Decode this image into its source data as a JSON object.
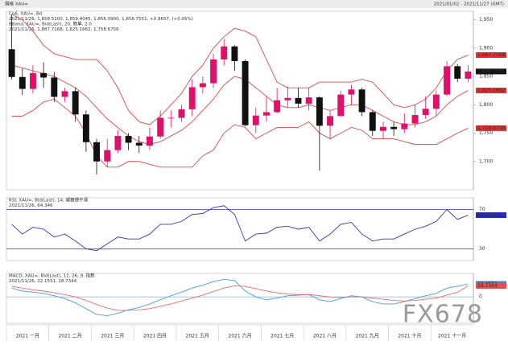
{
  "window_title": "價格 XAU=",
  "window_range": "2021/01/02 - 2021/11/27 (GMT)",
  "watermark": "FX678",
  "months": [
    "2021 一月",
    "2021 二月",
    "2021 三月",
    "2021 四月",
    "2021 五月",
    "2021 六月",
    "2021 七月",
    "2021 八月",
    "2021 九月",
    "2021 十月",
    "2021 十一月"
  ],
  "chart_data": [
    {
      "type": "candlestick",
      "header": [
        "Cn6, XAU=, Bd",
        "2021/11/26, 1,858.5100, 1,859.4045, 1,856.0900, 1,858.7551, +0.9657, (+0.05%)",
        "BBand, XAU=, Bid(Last), 20, 簡單, 2.0",
        "2021/11/26, 1,887.7168, 1,825.1662, 1,758.6756"
      ],
      "header_colors": [
        "#333333",
        "#2a2aa0",
        "#d03030",
        "#d03030"
      ],
      "open": [
        1898,
        1849,
        1828,
        1856,
        1848,
        1814,
        1824,
        1783,
        1734,
        1700,
        1720,
        1745,
        1733,
        1728,
        1744,
        1777,
        1777,
        1792,
        1831,
        1838,
        1880,
        1903,
        1877,
        1764,
        1781,
        1787,
        1808,
        1812,
        1802,
        1813,
        1763,
        1780,
        1818,
        1827,
        1787,
        1754,
        1761,
        1757,
        1767,
        1782,
        1793,
        1818,
        1868,
        1846
      ],
      "high": [
        1959,
        1864,
        1870,
        1875,
        1858,
        1830,
        1830,
        1790,
        1740,
        1740,
        1755,
        1750,
        1745,
        1760,
        1790,
        1790,
        1800,
        1845,
        1850,
        1890,
        1916,
        1905,
        1880,
        1795,
        1815,
        1830,
        1832,
        1830,
        1830,
        1815,
        1790,
        1825,
        1835,
        1830,
        1790,
        1770,
        1770,
        1785,
        1800,
        1815,
        1825,
        1877,
        1872,
        1870
      ],
      "low": [
        1845,
        1817,
        1820,
        1830,
        1805,
        1805,
        1770,
        1717,
        1677,
        1690,
        1715,
        1720,
        1715,
        1720,
        1740,
        1760,
        1770,
        1780,
        1820,
        1830,
        1870,
        1860,
        1762,
        1750,
        1770,
        1785,
        1795,
        1795,
        1790,
        1684,
        1740,
        1780,
        1800,
        1780,
        1745,
        1740,
        1745,
        1750,
        1760,
        1775,
        1780,
        1815,
        1840,
        1840
      ],
      "close": [
        1849,
        1828,
        1856,
        1848,
        1814,
        1824,
        1783,
        1734,
        1700,
        1720,
        1745,
        1733,
        1728,
        1744,
        1777,
        1777,
        1792,
        1831,
        1838,
        1880,
        1903,
        1877,
        1764,
        1781,
        1787,
        1808,
        1812,
        1802,
        1813,
        1763,
        1780,
        1818,
        1827,
        1787,
        1754,
        1761,
        1757,
        1767,
        1782,
        1793,
        1818,
        1868,
        1846,
        1858.7551
      ],
      "up_color": "#e0106a",
      "down_color": "#111111",
      "series": [
        {
          "color": "#e04848",
          "values": [
            1960,
            1950,
            1930,
            1905,
            1890,
            1885,
            1880,
            1880,
            1880,
            1860,
            1830,
            1790,
            1770,
            1765,
            1780,
            1800,
            1820,
            1850,
            1870,
            1900,
            1920,
            1935,
            1930,
            1920,
            1880,
            1840,
            1830,
            1830,
            1830,
            1840,
            1840,
            1840,
            1840,
            1845,
            1840,
            1820,
            1800,
            1795,
            1800,
            1810,
            1830,
            1860,
            1880,
            1887.7168
          ]
        },
        {
          "color": "#e04848",
          "values": [
            1870,
            1865,
            1860,
            1855,
            1850,
            1840,
            1830,
            1815,
            1795,
            1775,
            1760,
            1745,
            1735,
            1730,
            1735,
            1745,
            1755,
            1770,
            1790,
            1810,
            1835,
            1850,
            1845,
            1830,
            1815,
            1800,
            1795,
            1795,
            1800,
            1795,
            1790,
            1795,
            1800,
            1800,
            1790,
            1780,
            1770,
            1765,
            1765,
            1770,
            1780,
            1800,
            1815,
            1825.1662
          ]
        },
        {
          "color": "#e04848",
          "values": [
            1780,
            1780,
            1790,
            1805,
            1810,
            1795,
            1780,
            1750,
            1710,
            1690,
            1690,
            1700,
            1700,
            1695,
            1690,
            1690,
            1690,
            1690,
            1710,
            1720,
            1750,
            1765,
            1760,
            1740,
            1750,
            1760,
            1760,
            1760,
            1770,
            1750,
            1740,
            1750,
            1760,
            1755,
            1740,
            1740,
            1740,
            1735,
            1730,
            1730,
            1730,
            1740,
            1750,
            1758.6756
          ]
        }
      ],
      "markers": [
        {
          "value": 1887.7168,
          "label": "1,887.7168",
          "color": "#e03030"
        },
        {
          "value": 1858.7551,
          "label": "1,858.7551",
          "color": "#111111"
        },
        {
          "value": 1825.1662,
          "label": "1,825.1662",
          "color": "#e03030"
        },
        {
          "value": 1758.6756,
          "label": "1,758.6756",
          "color": "#e03030"
        }
      ],
      "ylim": [
        1650,
        1965
      ],
      "yticks": [
        {
          "value": 1700,
          "label": "1,700"
        },
        {
          "value": 1750,
          "label": "1,750"
        },
        {
          "value": 1800,
          "label": "1,800"
        },
        {
          "value": 1850,
          "label": "1,850"
        },
        {
          "value": 1900,
          "label": "1,900"
        },
        {
          "value": 1950,
          "label": "1,950"
        }
      ]
    },
    {
      "type": "line",
      "header": [
        "RSI, XAU=, Bid(Last), 14, 威爾德平滑",
        "2021/11/26, 64.346"
      ],
      "header_colors": [
        "#333333",
        "#2a2aa0"
      ],
      "series": [
        {
          "color": "#3434c0",
          "values": [
            55,
            45,
            52,
            50,
            42,
            45,
            38,
            30,
            28,
            35,
            42,
            40,
            40,
            45,
            55,
            55,
            58,
            65,
            66,
            72,
            74,
            65,
            38,
            45,
            46,
            52,
            53,
            50,
            52,
            38,
            45,
            55,
            57,
            45,
            38,
            40,
            40,
            45,
            50,
            53,
            58,
            70,
            60,
            64.346
          ]
        }
      ],
      "markers": [
        {
          "value": 64.346,
          "label": "64.346",
          "color": "#2a2ab0"
        }
      ],
      "ylim": [
        18,
        82
      ],
      "yticks": [
        30,
        70
      ],
      "tick_color": "#3434c0"
    },
    {
      "type": "line",
      "header": [
        "MACD, XAU=, Bid(Last), 12, 26, 9, 指數",
        "2021/11/26, 22.1551, 18.7344"
      ],
      "header_colors": [
        "#333333",
        "#2a2aa0"
      ],
      "series": [
        {
          "color": "#4a9ae6",
          "values": [
            15,
            10,
            8,
            6,
            2,
            -3,
            -10,
            -20,
            -30,
            -32,
            -28,
            -22,
            -18,
            -12,
            -5,
            2,
            8,
            15,
            20,
            26,
            30,
            28,
            10,
            0,
            -5,
            -2,
            2,
            3,
            4,
            -5,
            -8,
            -3,
            2,
            0,
            -8,
            -12,
            -12,
            -8,
            -3,
            2,
            6,
            15,
            18,
            22.1551
          ]
        },
        {
          "color": "#f06a6a",
          "values": [
            18,
            15,
            12,
            10,
            7,
            4,
            0,
            -6,
            -13,
            -19,
            -23,
            -23,
            -22,
            -20,
            -16,
            -12,
            -7,
            -2,
            3,
            9,
            15,
            19,
            18,
            14,
            10,
            7,
            5,
            4,
            4,
            2,
            0,
            -1,
            0,
            0,
            -2,
            -4,
            -6,
            -7,
            -6,
            -4,
            -2,
            3,
            8,
            18.7344
          ]
        }
      ],
      "markers": [
        {
          "value": 22.1551,
          "label": "22.1551",
          "color": "#3a8ee0"
        },
        {
          "value": 18.7344,
          "label": "18.7344",
          "color": "#e05050"
        }
      ],
      "ylim": [
        -45,
        40
      ],
      "yticks": [
        0
      ],
      "tick_color": "#7fc6e8"
    }
  ]
}
